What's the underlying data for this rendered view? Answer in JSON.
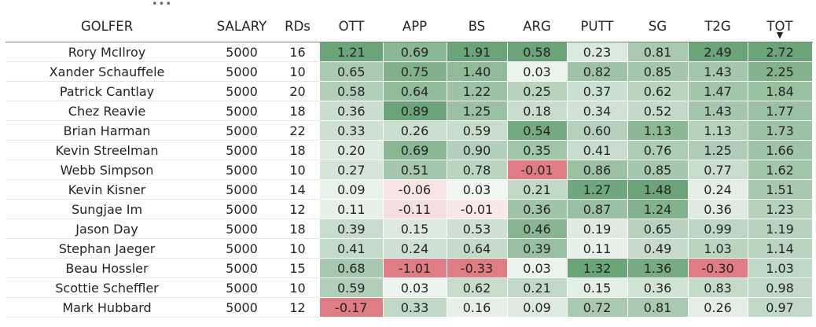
{
  "toolbar": {
    "more_options": "•••"
  },
  "columns": [
    "GOLFER",
    "SALARY",
    "RDs",
    "OTT",
    "APP",
    "BS",
    "ARG",
    "PUTT",
    "SG",
    "T2G",
    "TOT"
  ],
  "sort": {
    "column": "TOT",
    "direction": "descending",
    "indicator": "▼"
  },
  "colors": {
    "positive": "#5c9a6a",
    "negative": "#e07c84",
    "neutral": "#ffffff"
  },
  "rows": [
    [
      "Rory McIlroy",
      "5000",
      "16",
      "1.21",
      "0.69",
      "1.91",
      "0.58",
      "0.23",
      "0.81",
      "2.49",
      "2.72"
    ],
    [
      "Xander Schauffele",
      "5000",
      "10",
      "0.65",
      "0.75",
      "1.40",
      "0.03",
      "0.82",
      "0.85",
      "1.43",
      "2.25"
    ],
    [
      "Patrick Cantlay",
      "5000",
      "20",
      "0.58",
      "0.64",
      "1.22",
      "0.25",
      "0.37",
      "0.62",
      "1.47",
      "1.84"
    ],
    [
      "Chez Reavie",
      "5000",
      "18",
      "0.36",
      "0.89",
      "1.25",
      "0.18",
      "0.34",
      "0.52",
      "1.43",
      "1.77"
    ],
    [
      "Brian Harman",
      "5000",
      "22",
      "0.33",
      "0.26",
      "0.59",
      "0.54",
      "0.60",
      "1.13",
      "1.13",
      "1.73"
    ],
    [
      "Kevin Streelman",
      "5000",
      "18",
      "0.20",
      "0.69",
      "0.90",
      "0.35",
      "0.41",
      "0.76",
      "1.25",
      "1.66"
    ],
    [
      "Webb Simpson",
      "5000",
      "10",
      "0.27",
      "0.51",
      "0.78",
      "-0.01",
      "0.86",
      "0.85",
      "0.77",
      "1.62"
    ],
    [
      "Kevin Kisner",
      "5000",
      "14",
      "0.09",
      "-0.06",
      "0.03",
      "0.21",
      "1.27",
      "1.48",
      "0.24",
      "1.51"
    ],
    [
      "Sungjae Im",
      "5000",
      "12",
      "0.11",
      "-0.11",
      "-0.01",
      "0.36",
      "0.87",
      "1.24",
      "0.36",
      "1.23"
    ],
    [
      "Jason Day",
      "5000",
      "18",
      "0.39",
      "0.15",
      "0.53",
      "0.46",
      "0.19",
      "0.65",
      "0.99",
      "1.19"
    ],
    [
      "Stephan Jaeger",
      "5000",
      "10",
      "0.41",
      "0.24",
      "0.64",
      "0.39",
      "0.11",
      "0.49",
      "1.03",
      "1.14"
    ],
    [
      "Beau Hossler",
      "5000",
      "15",
      "0.68",
      "-1.01",
      "-0.33",
      "0.03",
      "1.32",
      "1.36",
      "-0.30",
      "1.03"
    ],
    [
      "Scottie Scheffler",
      "5000",
      "10",
      "0.59",
      "0.03",
      "0.62",
      "0.21",
      "0.15",
      "0.36",
      "0.83",
      "0.98"
    ],
    [
      "Mark Hubbard",
      "5000",
      "12",
      "-0.17",
      "0.33",
      "0.16",
      "0.09",
      "0.72",
      "0.81",
      "0.26",
      "0.97"
    ]
  ]
}
